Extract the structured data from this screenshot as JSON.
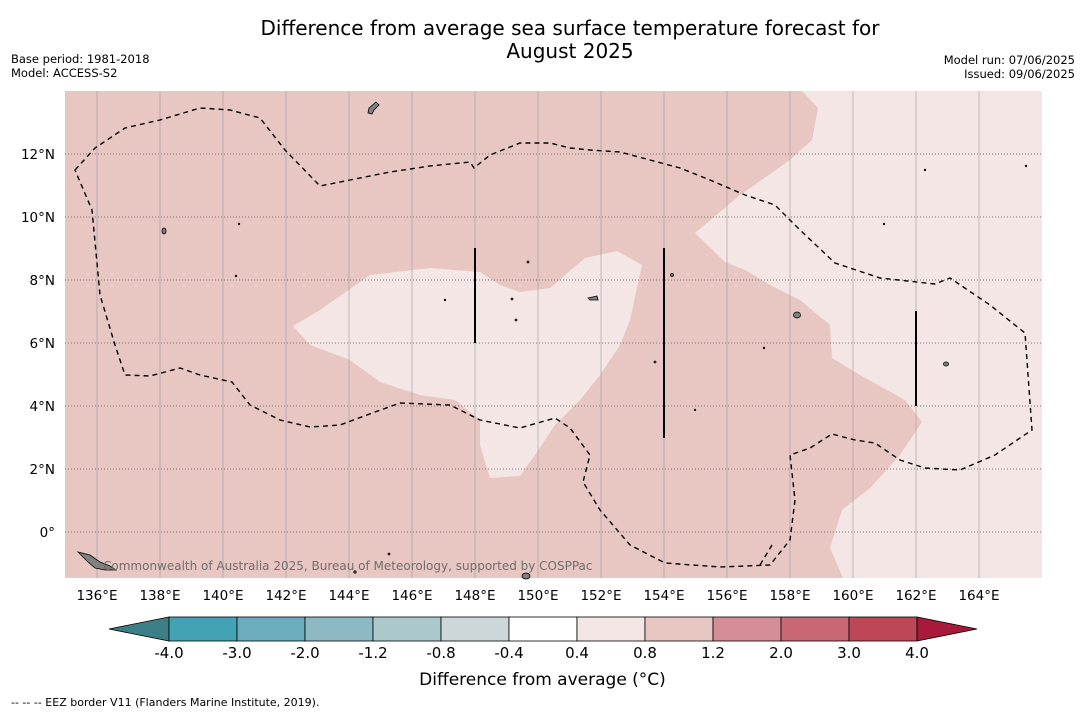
{
  "title": {
    "line1": "Difference from average sea surface temperature forecast for",
    "line2": "August 2025"
  },
  "meta": {
    "base_period": "Base period: 1981-2018",
    "model": "Model: ACCESS-S2",
    "model_run": "Model run: 07/06/2025",
    "issued": "Issued: 09/06/2025"
  },
  "map": {
    "lon_labels": [
      "136°E",
      "138°E",
      "140°E",
      "142°E",
      "144°E",
      "146°E",
      "148°E",
      "150°E",
      "152°E",
      "154°E",
      "156°E",
      "158°E",
      "160°E",
      "162°E",
      "164°E"
    ],
    "lat_labels": [
      "12°N",
      "10°N",
      "8°N",
      "6°N",
      "4°N",
      "2°N",
      "0°"
    ],
    "credit": "Commonwealth of Australia 2025, Bureau of Meteorology, supported by COSPPac",
    "colors": {
      "anomaly_0_8_to_1_2": "#e8c7c2",
      "anomaly_0_4_to_0_8": "#f4e6e4",
      "land": "#808080",
      "eez": "#000000"
    }
  },
  "colorbar": {
    "labels": [
      "-4.0",
      "-3.0",
      "-2.0",
      "-1.2",
      "-0.8",
      "-0.4",
      "0.4",
      "0.8",
      "1.2",
      "2.0",
      "3.0",
      "4.0"
    ],
    "colors": [
      "#43a2b4",
      "#6badbd",
      "#8cb9c4",
      "#abc8cc",
      "#cdd7d9",
      "#ffffff",
      "#f4e6e4",
      "#e8c7c2",
      "#d58e97",
      "#c96874",
      "#be4755"
    ],
    "low_extend_color": "#3d7f86",
    "high_extend_color": "#a9193a",
    "title": "Difference from average (°C)"
  },
  "footnote": "--  --  -- EEZ border V11 (Flanders Marine Institute, 2019)."
}
